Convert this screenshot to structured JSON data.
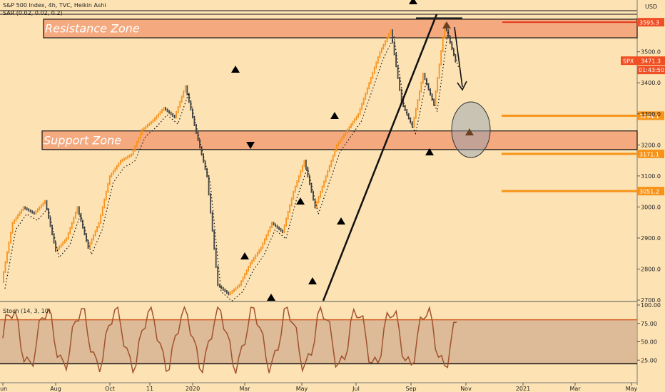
{
  "header": {
    "title": "S&P 500 Index, 4h, TVC, Heikin Ashi",
    "sar": "SAR (0.02, 0.02, 0.2)",
    "currency": "USD",
    "stoch": "Stoch (14, 3, 10)"
  },
  "chart_data": {
    "type": "candlestick",
    "symbol": "SPX",
    "y_ticks": [
      3500,
      3400,
      3300,
      3200,
      3100,
      3000,
      2900,
      2800,
      2700
    ],
    "y_tick_labels": [
      "3500.0",
      "3400.0",
      "3300.0",
      "3200.0",
      "3100.0",
      "3000.0",
      "2900.0",
      "2800.0",
      "2700.0"
    ],
    "x_ticks": [
      "Jun",
      "Aug",
      "Oct",
      "11",
      "2020",
      "Mar",
      "May",
      "Jul",
      "Sep",
      "Nov",
      "2021",
      "Mar",
      "May"
    ],
    "last_price": 3471.3,
    "last_price_label": "3471.3",
    "countdown": "01:43:50",
    "price_levels": [
      {
        "label": "3595.3",
        "value": 3595.3
      },
      {
        "label": "3294.1",
        "value": 3294.1
      },
      {
        "label": "3171.1",
        "value": 3171.1
      },
      {
        "label": "3051.2",
        "value": 3051.2
      }
    ],
    "zones": [
      {
        "label": "Resistance Zone",
        "low": 3545,
        "high": 3605
      },
      {
        "label": "Support Zone",
        "low": 3185,
        "high": 3245
      }
    ],
    "series_close": [
      2760,
      2950,
      3000,
      2980,
      3020,
      2860,
      2900,
      3000,
      2870,
      2950,
      3100,
      3150,
      3170,
      3250,
      3280,
      3320,
      3290,
      3390,
      3240,
      3100,
      2750,
      2720,
      2750,
      2820,
      2870,
      2950,
      2920,
      3050,
      3150,
      3000,
      3100,
      3200,
      3250,
      3300,
      3400,
      3500,
      3570,
      3340,
      3260,
      3430,
      3330,
      3590,
      3470
    ],
    "stoch": {
      "levels": [
        80,
        20
      ],
      "ticks": [
        100,
        75,
        50,
        25
      ],
      "tick_labels": [
        "100.00",
        "75.00",
        "50.00",
        "25.00"
      ]
    }
  },
  "colors": {
    "background": "#fde3b4",
    "zone": "#f5a97f",
    "accent": "#f79318",
    "price_badge": "#f04e23",
    "level_line": "#f79318"
  }
}
